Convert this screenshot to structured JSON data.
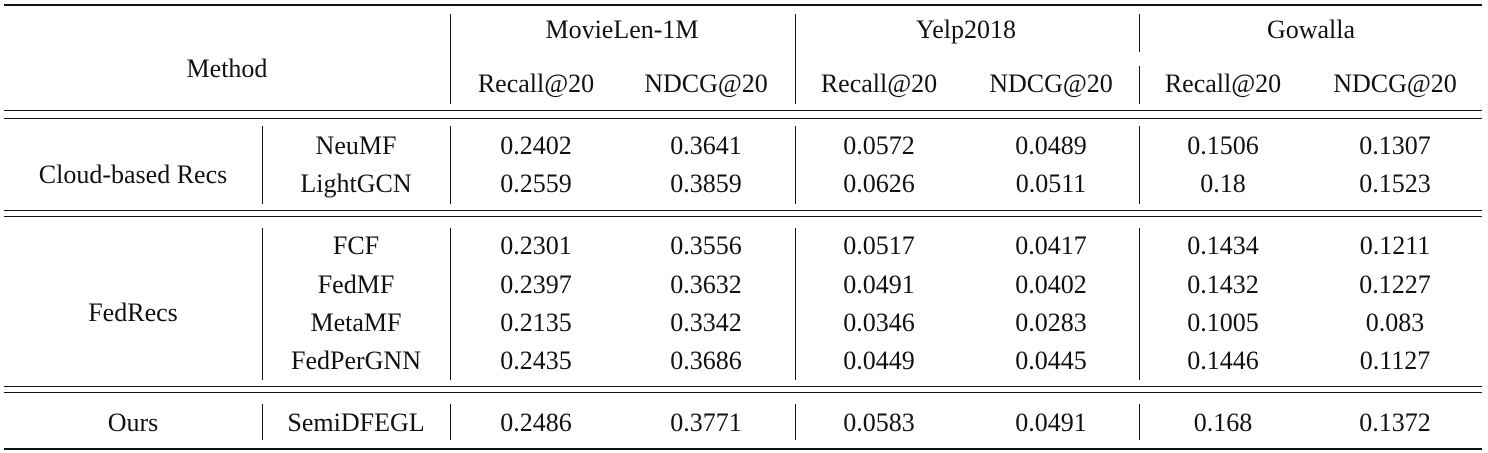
{
  "header": {
    "method": "Method",
    "datasets": [
      "MovieLen-1M",
      "Yelp2018",
      "Gowalla"
    ],
    "metrics": [
      "Recall@20",
      "NDCG@20",
      "Recall@20",
      "NDCG@20",
      "Recall@20",
      "NDCG@20"
    ]
  },
  "groups": [
    {
      "name": "Cloud-based Recs",
      "rows": [
        {
          "method": "NeuMF",
          "values": [
            "0.2402",
            "0.3641",
            "0.0572",
            "0.0489",
            "0.1506",
            "0.1307"
          ]
        },
        {
          "method": "LightGCN",
          "values": [
            "0.2559",
            "0.3859",
            "0.0626",
            "0.0511",
            "0.18",
            "0.1523"
          ]
        }
      ]
    },
    {
      "name": "FedRecs",
      "rows": [
        {
          "method": "FCF",
          "values": [
            "0.2301",
            "0.3556",
            "0.0517",
            "0.0417",
            "0.1434",
            "0.1211"
          ]
        },
        {
          "method": "FedMF",
          "values": [
            "0.2397",
            "0.3632",
            "0.0491",
            "0.0402",
            "0.1432",
            "0.1227"
          ]
        },
        {
          "method": "MetaMF",
          "values": [
            "0.2135",
            "0.3342",
            "0.0346",
            "0.0283",
            "0.1005",
            "0.083"
          ]
        },
        {
          "method": "FedPerGNN",
          "values": [
            "0.2435",
            "0.3686",
            "0.0449",
            "0.0445",
            "0.1446",
            "0.1127"
          ]
        }
      ]
    },
    {
      "name": "Ours",
      "rows": [
        {
          "method": "SemiDFEGL",
          "values": [
            "0.2486",
            "0.3771",
            "0.0583",
            "0.0491",
            "0.168",
            "0.1372"
          ]
        }
      ]
    }
  ]
}
